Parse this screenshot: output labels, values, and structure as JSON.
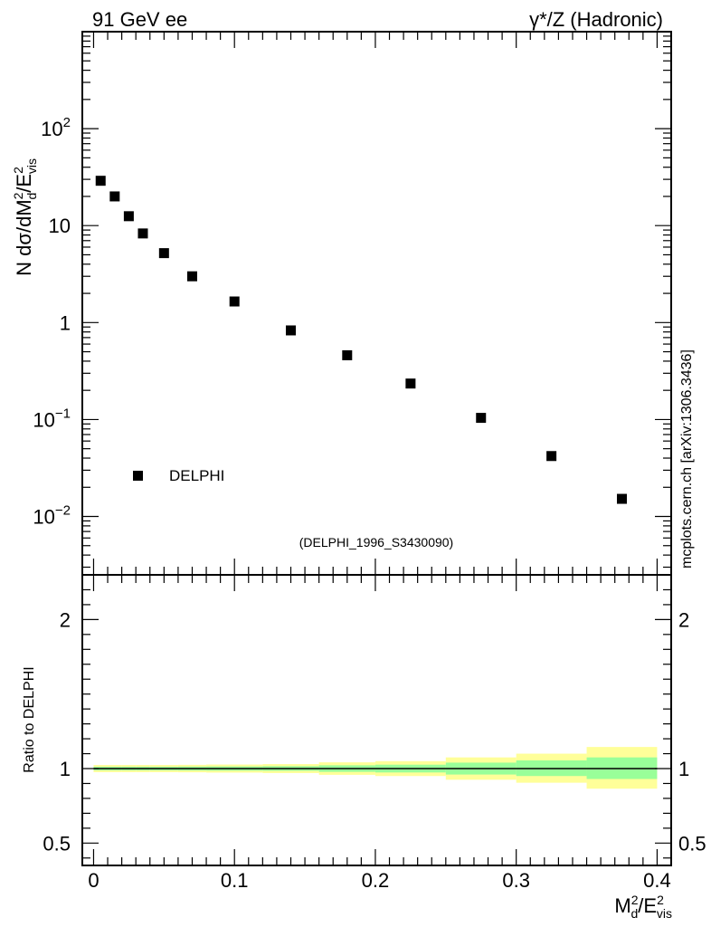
{
  "header": {
    "left": "91 GeV ee",
    "right": "γ*/Z (Hadronic)"
  },
  "watermark": "mcplots.cern.ch [arXiv:1306.3436]",
  "analysis_tag": "(DELPHI_1996_S3430090)",
  "colors": {
    "data": "#000000",
    "band_inner": "#99ff99",
    "band_outer": "#ffff99",
    "tag": "#999999"
  },
  "chart_data": [
    {
      "type": "scatter",
      "title": "",
      "xlabel": "M_d^2/E_vis^2",
      "ylabel": "N dσ/dM_d^2/E_vis^2",
      "yscale": "log",
      "xlim": [
        -0.008,
        0.41
      ],
      "ylim": [
        0.0025,
        1000
      ],
      "y_ticks": [
        {
          "value": 0.01,
          "mantissa": "10",
          "exp": "−2"
        },
        {
          "value": 0.1,
          "mantissa": "10",
          "exp": "−1"
        },
        {
          "value": 1,
          "mantissa": "1",
          "exp": ""
        },
        {
          "value": 10,
          "mantissa": "10",
          "exp": ""
        },
        {
          "value": 100,
          "mantissa": "10",
          "exp": "2"
        }
      ],
      "legend": {
        "label": "DELPHI",
        "position": "bottom-left"
      },
      "series": [
        {
          "name": "DELPHI",
          "x": [
            0.005,
            0.015,
            0.025,
            0.035,
            0.05,
            0.07,
            0.1,
            0.14,
            0.18,
            0.225,
            0.275,
            0.325,
            0.375
          ],
          "y": [
            29,
            20,
            12.5,
            8.3,
            5.2,
            3.0,
            1.65,
            0.83,
            0.46,
            0.235,
            0.104,
            0.042,
            0.0152
          ]
        }
      ]
    },
    {
      "type": "area",
      "title": "",
      "xlabel": "M_d^2/E_vis^2",
      "ylabel": "Ratio to DELPHI",
      "xlim": [
        -0.008,
        0.41
      ],
      "ylim": [
        0.35,
        2.3
      ],
      "x_ticks": [
        "0",
        "0.1",
        "0.2",
        "0.3",
        "0.4"
      ],
      "x_tick_values": [
        0,
        0.1,
        0.2,
        0.3,
        0.4
      ],
      "y_ticks": [
        "0.5",
        "1",
        "2"
      ],
      "y_tick_values": [
        0.5,
        1,
        2
      ],
      "reference_line": 1,
      "bins": [
        {
          "lo": 0.0,
          "hi": 0.01,
          "inner": [
            0.988,
            1.012
          ],
          "outer": [
            0.976,
            1.024
          ]
        },
        {
          "lo": 0.01,
          "hi": 0.02,
          "inner": [
            0.988,
            1.012
          ],
          "outer": [
            0.976,
            1.024
          ]
        },
        {
          "lo": 0.02,
          "hi": 0.03,
          "inner": [
            0.988,
            1.012
          ],
          "outer": [
            0.976,
            1.024
          ]
        },
        {
          "lo": 0.03,
          "hi": 0.04,
          "inner": [
            0.988,
            1.012
          ],
          "outer": [
            0.976,
            1.024
          ]
        },
        {
          "lo": 0.04,
          "hi": 0.06,
          "inner": [
            0.988,
            1.012
          ],
          "outer": [
            0.976,
            1.024
          ]
        },
        {
          "lo": 0.06,
          "hi": 0.08,
          "inner": [
            0.987,
            1.013
          ],
          "outer": [
            0.975,
            1.025
          ]
        },
        {
          "lo": 0.08,
          "hi": 0.12,
          "inner": [
            0.986,
            1.014
          ],
          "outer": [
            0.973,
            1.027
          ]
        },
        {
          "lo": 0.12,
          "hi": 0.16,
          "inner": [
            0.985,
            1.016
          ],
          "outer": [
            0.97,
            1.03
          ]
        },
        {
          "lo": 0.16,
          "hi": 0.2,
          "inner": [
            0.978,
            1.022
          ],
          "outer": [
            0.958,
            1.042
          ]
        },
        {
          "lo": 0.2,
          "hi": 0.25,
          "inner": [
            0.974,
            1.026
          ],
          "outer": [
            0.95,
            1.05
          ]
        },
        {
          "lo": 0.25,
          "hi": 0.3,
          "inner": [
            0.96,
            1.04
          ],
          "outer": [
            0.925,
            1.075
          ]
        },
        {
          "lo": 0.3,
          "hi": 0.35,
          "inner": [
            0.95,
            1.055
          ],
          "outer": [
            0.905,
            1.1
          ]
        },
        {
          "lo": 0.35,
          "hi": 0.4,
          "inner": [
            0.93,
            1.075
          ],
          "outer": [
            0.865,
            1.145
          ]
        }
      ]
    }
  ]
}
